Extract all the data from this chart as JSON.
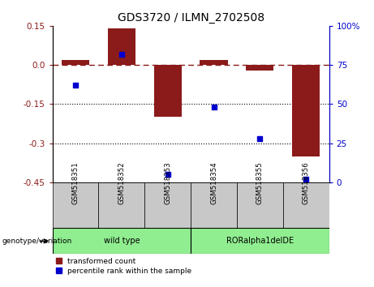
{
  "title": "GDS3720 / ILMN_2702508",
  "samples": [
    "GSM518351",
    "GSM518352",
    "GSM518353",
    "GSM518354",
    "GSM518355",
    "GSM518356"
  ],
  "transformed_count": [
    0.02,
    0.14,
    -0.2,
    0.02,
    -0.02,
    -0.35
  ],
  "percentile_rank": [
    62,
    82,
    5,
    48,
    28,
    2
  ],
  "bar_color": "#8B1A1A",
  "dot_color": "#0000CD",
  "left_ylim": [
    -0.45,
    0.15
  ],
  "left_yticks": [
    0.15,
    0.0,
    -0.15,
    -0.3,
    -0.45
  ],
  "right_ylim": [
    0,
    100
  ],
  "right_yticks": [
    100,
    75,
    50,
    25,
    0
  ],
  "hline_y": 0.0,
  "dotted_lines": [
    -0.15,
    -0.3
  ],
  "group_info": [
    {
      "label": "wild type",
      "start": 0,
      "end": 2,
      "color": "#90EE90"
    },
    {
      "label": "RORalpha1delDE",
      "start": 3,
      "end": 5,
      "color": "#90EE90"
    }
  ],
  "group_label": "genotype/variation",
  "legend_red": "transformed count",
  "legend_blue": "percentile rank within the sample",
  "bar_width": 0.6,
  "title_fontsize": 10,
  "tick_fontsize": 7.5,
  "cell_color": "#C8C8C8"
}
